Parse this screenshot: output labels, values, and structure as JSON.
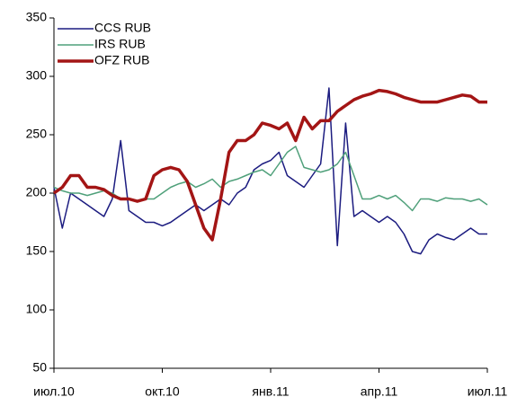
{
  "chart_data": {
    "type": "line",
    "categories": [
      "июл.10",
      null,
      null,
      null,
      null,
      null,
      null,
      null,
      null,
      null,
      null,
      null,
      null,
      "окт.10",
      null,
      null,
      null,
      null,
      null,
      null,
      null,
      null,
      null,
      null,
      null,
      null,
      "янв.11",
      null,
      null,
      null,
      null,
      null,
      null,
      null,
      null,
      null,
      null,
      null,
      null,
      "апр.11",
      null,
      null,
      null,
      null,
      null,
      null,
      null,
      null,
      null,
      null,
      null,
      null,
      "июл.11"
    ],
    "series": [
      {
        "name": "CCS RUB",
        "color": "#1c1c80",
        "width": 1.5,
        "values": [
          205,
          170,
          200,
          195,
          190,
          185,
          180,
          195,
          245,
          185,
          180,
          175,
          175,
          172,
          175,
          180,
          185,
          190,
          185,
          190,
          195,
          190,
          200,
          205,
          220,
          225,
          228,
          235,
          215,
          210,
          205,
          215,
          225,
          290,
          155,
          260,
          180,
          185,
          180,
          175,
          180,
          175,
          165,
          150,
          148,
          160,
          165,
          162,
          160,
          165,
          170,
          165,
          165
        ]
      },
      {
        "name": "IRS RUB",
        "color": "#4fa07a",
        "width": 1.5,
        "values": [
          205,
          202,
          200,
          200,
          198,
          200,
          202,
          200,
          195,
          195,
          193,
          195,
          195,
          200,
          205,
          208,
          210,
          205,
          208,
          212,
          205,
          210,
          212,
          215,
          218,
          220,
          215,
          225,
          235,
          240,
          222,
          220,
          218,
          220,
          225,
          235,
          215,
          195,
          195,
          198,
          195,
          198,
          192,
          185,
          195,
          195,
          193,
          196,
          195,
          195,
          193,
          195,
          190
        ]
      },
      {
        "name": "OFZ RUB",
        "color": "#a31515",
        "width": 3.5,
        "values": [
          200,
          205,
          215,
          215,
          205,
          205,
          203,
          198,
          195,
          195,
          193,
          195,
          215,
          220,
          222,
          220,
          210,
          190,
          170,
          160,
          195,
          235,
          245,
          245,
          250,
          260,
          258,
          255,
          260,
          245,
          265,
          255,
          262,
          262,
          270,
          275,
          280,
          283,
          285,
          288,
          287,
          285,
          282,
          280,
          278,
          278,
          278,
          280,
          282,
          284,
          283,
          278,
          278
        ]
      }
    ],
    "ylim": [
      50,
      350
    ],
    "yticks": [
      50,
      100,
      150,
      200,
      250,
      300,
      350
    ],
    "legend": "upper left"
  }
}
